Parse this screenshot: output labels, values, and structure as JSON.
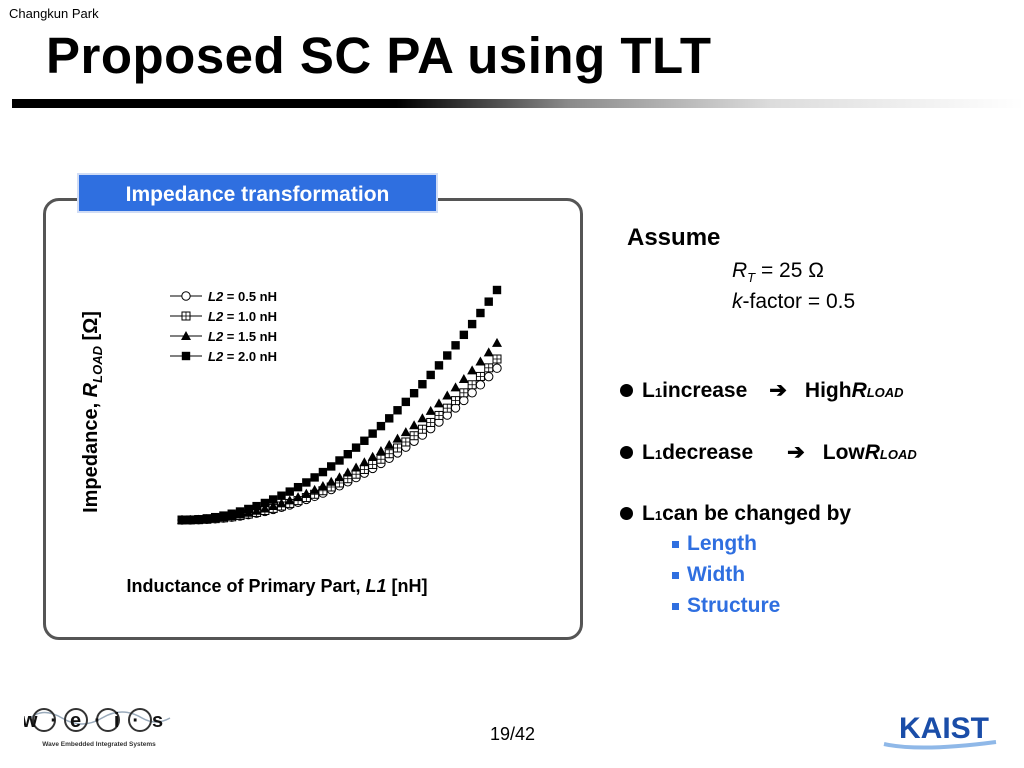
{
  "header": {
    "author": "Changkun Park",
    "title": "Proposed SC PA using TLT"
  },
  "panel": {
    "title": "Impedance transformation"
  },
  "chart_data": {
    "type": "scatter",
    "xlabel_text": "Inductance of Primary Part, ",
    "xlabel_var": "L1",
    "xlabel_unit": " [nH]",
    "ylabel_text": "Impedance, ",
    "ylabel_var": "R",
    "ylabel_sub": "LOAD",
    "ylabel_unit": " [Ω]",
    "x": [
      0,
      0.05,
      0.1,
      0.15,
      0.2,
      0.25,
      0.3,
      0.35,
      0.4,
      0.45,
      0.5,
      0.55,
      0.6,
      0.65,
      0.7,
      0.75,
      0.8,
      0.85,
      0.9,
      0.95,
      1
    ],
    "series": [
      {
        "name": "L2 = 0.5 nH",
        "var": "L2",
        "value": " = 0.5 nH",
        "marker": "circle-open",
        "power": 2.15,
        "max": 0.66
      },
      {
        "name": "L2 = 1.0 nH",
        "var": "L2",
        "value": " = 1.0 nH",
        "marker": "square-cross",
        "power": 2.12,
        "max": 0.7
      },
      {
        "name": "L2 = 1.5 nH",
        "var": "L2",
        "value": " = 1.5 nH",
        "marker": "triangle-filled",
        "power": 2.05,
        "max": 0.77
      },
      {
        "name": "L2 = 2.0 nH",
        "var": "L2",
        "value": " = 2.0 nH",
        "marker": "square-filled",
        "power": 1.95,
        "max": 1.0
      }
    ]
  },
  "assume": {
    "label": "Assume",
    "rt_symbol": "R",
    "rt_sub": "T",
    "rt_value": " =  25 Ω",
    "k_symbol": "k",
    "k_value": "-factor = 0.5"
  },
  "bullets": [
    {
      "prefix": "L",
      "sub": "1",
      "text": " increase",
      "arrow": "➔",
      "result": "High ",
      "result_var": "R",
      "result_sub": "LOAD"
    },
    {
      "prefix": "L",
      "sub": "1",
      "text": " decrease",
      "arrow": "➔",
      "result": "Low ",
      "result_var": "R",
      "result_sub": "LOAD"
    },
    {
      "prefix": "L",
      "sub": "1",
      "text": " can be changed by"
    }
  ],
  "sub_bullets": [
    "Length",
    "Width",
    "Structure"
  ],
  "footer": {
    "page": "19/42",
    "weis_logo": "w·e·i·s",
    "weis_caption": "Wave Embedded Integrated Systems",
    "kaist_logo": "KAIST"
  }
}
